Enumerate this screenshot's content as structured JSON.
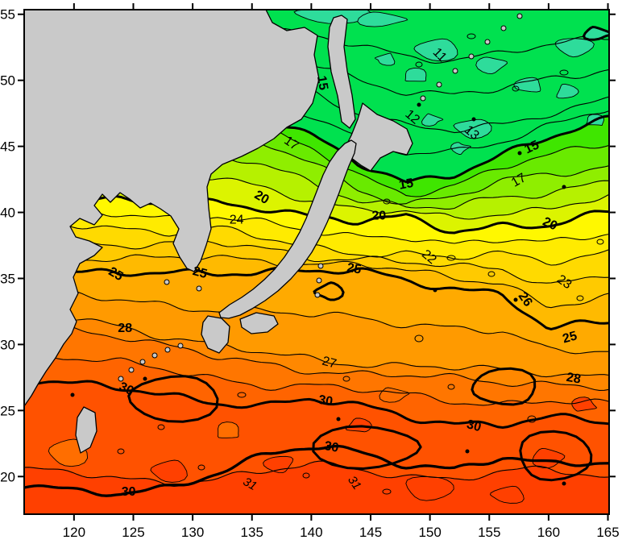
{
  "chart_data": {
    "type": "heatmap",
    "subtype": "filled contour map of sea surface temperature around Japan",
    "title": "",
    "xlabel": "",
    "ylabel": "",
    "x_ticks": [
      120,
      125,
      130,
      135,
      140,
      145,
      150,
      155,
      160,
      165
    ],
    "y_ticks": [
      20,
      25,
      30,
      35,
      40,
      45,
      50,
      55
    ],
    "xlim": [
      115.8,
      165.1
    ],
    "ylim": [
      17.15,
      55.35
    ],
    "grid": false,
    "contour_interval": 1,
    "bold_levels": [
      15,
      20,
      25,
      30
    ],
    "lon_grid": [
      115.8,
      120,
      124,
      128,
      132,
      136,
      140,
      144,
      148,
      152,
      156,
      160,
      165.1
    ],
    "contours": {
      "11": [
        55.2,
        55.0,
        54.8,
        54.6,
        54.2,
        53.8,
        53.3,
        52.6,
        51.9,
        51.6,
        52.0,
        52.6,
        53.3
      ],
      "13": [
        52.5,
        52.3,
        52.0,
        51.5,
        51.0,
        50.2,
        49.2,
        47.6,
        46.5,
        46.1,
        46.6,
        47.6,
        48.6
      ],
      "15": [
        50.5,
        50.2,
        49.8,
        49.2,
        48.4,
        47.4,
        45.8,
        43.6,
        42.2,
        43.0,
        44.4,
        45.6,
        47.0
      ],
      "17": [
        48.5,
        48.2,
        47.6,
        47.0,
        46.0,
        45.1,
        43.8,
        41.8,
        40.7,
        41.1,
        42.3,
        42.9,
        43.6
      ],
      "20": [
        41.2,
        41.0,
        40.8,
        40.6,
        40.9,
        40.4,
        39.6,
        39.2,
        39.7,
        38.7,
        39.0,
        38.9,
        40.0
      ],
      "22": [
        39.2,
        39.0,
        38.8,
        38.6,
        38.8,
        38.0,
        37.3,
        37.0,
        36.9,
        36.5,
        36.8,
        36.3,
        37.1
      ],
      "25": [
        35.7,
        35.5,
        35.2,
        35.5,
        35.4,
        35.7,
        35.4,
        35.6,
        34.8,
        34.4,
        33.8,
        31.1,
        31.7
      ],
      "27": [
        32.3,
        32.0,
        31.4,
        30.6,
        29.9,
        29.3,
        28.9,
        28.6,
        28.4,
        28.2,
        28.0,
        27.9,
        27.6
      ],
      "28": [
        31.5,
        31.2,
        30.7,
        29.8,
        29.0,
        28.5,
        28.1,
        27.8,
        27.6,
        27.4,
        27.2,
        27.1,
        26.7
      ],
      "30": [
        27.5,
        27.0,
        26.6,
        26.1,
        25.7,
        25.4,
        25.8,
        25.3,
        24.6,
        24.1,
        23.9,
        24.4,
        24.1
      ],
      "31": [
        20.5,
        20.2,
        19.8,
        19.6,
        19.9,
        20.3,
        20.9,
        20.6,
        20.1,
        19.8,
        20.2,
        20.6,
        20.0
      ],
      "30b": [
        19.4,
        18.8,
        18.6,
        19.2,
        20.4,
        21.6,
        22.2,
        21.8,
        21.0,
        20.6,
        21.4,
        20.8,
        21.2
      ]
    },
    "contour_labels": [
      {
        "text": "11",
        "lon": 150.8,
        "lat": 51.9,
        "rot": 45,
        "bold": false
      },
      {
        "text": "12",
        "lon": 148.5,
        "lat": 47.2,
        "rot": 40,
        "bold": false
      },
      {
        "text": "13",
        "lon": 153.5,
        "lat": 46.0,
        "rot": 40,
        "bold": false
      },
      {
        "text": "15",
        "lon": 140.9,
        "lat": 49.8,
        "rot": 80,
        "bold": true
      },
      {
        "text": "15",
        "lon": 158.6,
        "lat": 44.9,
        "rot": -25,
        "bold": true
      },
      {
        "text": "15",
        "lon": 148.0,
        "lat": 42.1,
        "rot": -10,
        "bold": true
      },
      {
        "text": "17",
        "lon": 138.3,
        "lat": 45.2,
        "rot": 35,
        "bold": false
      },
      {
        "text": "17",
        "lon": 157.5,
        "lat": 42.4,
        "rot": -30,
        "bold": false
      },
      {
        "text": "20",
        "lon": 135.8,
        "lat": 41.1,
        "rot": 30,
        "bold": true
      },
      {
        "text": "20",
        "lon": 145.7,
        "lat": 39.7,
        "rot": 0,
        "bold": true
      },
      {
        "text": "20",
        "lon": 160.1,
        "lat": 39.1,
        "rot": 25,
        "bold": true
      },
      {
        "text": "22",
        "lon": 149.9,
        "lat": 36.6,
        "rot": 40,
        "bold": false
      },
      {
        "text": "23",
        "lon": 161.3,
        "lat": 34.7,
        "rot": 35,
        "bold": false
      },
      {
        "text": "24",
        "lon": 133.7,
        "lat": 39.4,
        "rot": 0,
        "bold": false
      },
      {
        "text": "25",
        "lon": 123.5,
        "lat": 35.3,
        "rot": 30,
        "bold": true
      },
      {
        "text": "25",
        "lon": 130.6,
        "lat": 35.4,
        "rot": 15,
        "bold": true
      },
      {
        "text": "25",
        "lon": 143.6,
        "lat": 35.7,
        "rot": 10,
        "bold": true
      },
      {
        "text": "25",
        "lon": 161.8,
        "lat": 30.5,
        "rot": -15,
        "bold": true
      },
      {
        "text": "26",
        "lon": 158.0,
        "lat": 33.4,
        "rot": 55,
        "bold": true
      },
      {
        "text": "27",
        "lon": 141.5,
        "lat": 28.6,
        "rot": 15,
        "bold": false
      },
      {
        "text": "28",
        "lon": 124.3,
        "lat": 31.2,
        "rot": 0,
        "bold": true
      },
      {
        "text": "28",
        "lon": 162.1,
        "lat": 27.4,
        "rot": 10,
        "bold": true
      },
      {
        "text": "30",
        "lon": 124.4,
        "lat": 26.6,
        "rot": 25,
        "bold": true
      },
      {
        "text": "30",
        "lon": 141.2,
        "lat": 25.7,
        "rot": 10,
        "bold": true
      },
      {
        "text": "30",
        "lon": 153.7,
        "lat": 23.8,
        "rot": 15,
        "bold": true
      },
      {
        "text": "30",
        "lon": 141.7,
        "lat": 22.2,
        "rot": 10,
        "bold": true
      },
      {
        "text": "30",
        "lon": 124.6,
        "lat": 18.8,
        "rot": 0,
        "bold": true
      },
      {
        "text": "31",
        "lon": 134.8,
        "lat": 19.4,
        "rot": 30,
        "bold": false,
        "italic": true
      },
      {
        "text": "31",
        "lon": 143.6,
        "lat": 19.5,
        "rot": 55,
        "bold": false,
        "italic": true
      }
    ],
    "cold_patches": [
      [
        150.5,
        52.3,
        1.8,
        0.8
      ],
      [
        155.2,
        51.2,
        1.2,
        0.6
      ],
      [
        148.8,
        50.3,
        1.0,
        0.5
      ],
      [
        153.6,
        46.4,
        1.5,
        0.7
      ],
      [
        150.2,
        47.0,
        0.8,
        0.4
      ],
      [
        158.2,
        49.6,
        1.2,
        0.5
      ],
      [
        162.2,
        52.6,
        1.5,
        0.7
      ],
      [
        161.6,
        49.1,
        0.9,
        0.5
      ],
      [
        146.2,
        51.6,
        0.8,
        0.4
      ],
      [
        152.6,
        44.9,
        0.7,
        0.4
      ],
      [
        163.9,
        46.9,
        0.8,
        0.4
      ],
      [
        141.8,
        55.0,
        3.2,
        0.6
      ],
      [
        146.0,
        54.6,
        2.0,
        0.5
      ]
    ],
    "warm_patches": [
      [
        128.0,
        20.4,
        1.5,
        0.8
      ],
      [
        137.2,
        21.0,
        1.2,
        0.6
      ],
      [
        150.0,
        19.2,
        2.0,
        0.9
      ],
      [
        160.0,
        21.4,
        1.3,
        0.7
      ],
      [
        163.0,
        25.4,
        1.0,
        0.5
      ],
      [
        144.0,
        23.8,
        1.0,
        0.5
      ],
      [
        156.5,
        18.6,
        1.4,
        0.6
      ]
    ],
    "light_patches": [
      [
        119.5,
        21.8,
        1.6,
        1.0
      ],
      [
        133.0,
        23.4,
        1.0,
        0.6
      ],
      [
        147.0,
        26.2,
        1.2,
        0.5
      ]
    ],
    "band_colors": {
      "11": "#00E14F",
      "12": "#00E14F",
      "13": "#00E14F",
      "14": "#00E14F",
      "15": "#3FE600",
      "16": "#69EA00",
      "17": "#8FEE00",
      "18": "#B6F100",
      "19": "#DCF400",
      "20": "#FFF800",
      "21": "#FFEB00",
      "22": "#FFDA00",
      "23": "#FFCA00",
      "24": "#FFBA00",
      "25": "#FFAA00",
      "26": "#FF9A00",
      "27": "#FF8800",
      "28": "#FF7600",
      "29": "#FF6400",
      "30": "#FF5200",
      "31": "#FF4000"
    },
    "sea_base_color": "#00E14F",
    "cold_patch_color": "#2EDC9B",
    "warm_patch_color": "#FF4000",
    "light_patch_color": "#FF6E00",
    "land_color": "#C9C9C9",
    "coast_color": "#000000",
    "frame_color": "#000000",
    "legend": "none"
  }
}
